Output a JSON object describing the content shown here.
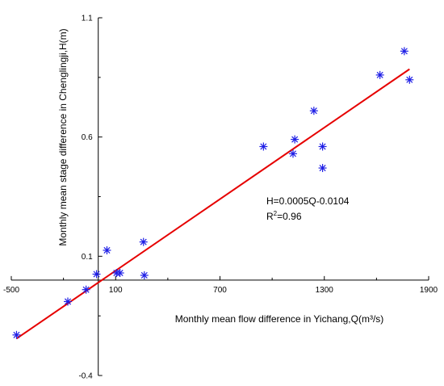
{
  "chart_data": {
    "type": "scatter",
    "title": "",
    "xlabel": "Monthly mean flow difference in Yichang,Q(m³/s)",
    "ylabel": "Monthly mean stage difference in Chenglingji,H(m)",
    "xlim": [
      -500,
      1900
    ],
    "ylim": [
      -0.4,
      1.1
    ],
    "x_tick_labels": [
      "-500",
      "100",
      "700",
      "1300",
      "1900"
    ],
    "x_tick_values": [
      -500,
      100,
      700,
      1300,
      1900
    ],
    "x_minor_ticks": [
      -200,
      400,
      1000,
      1600
    ],
    "y_tick_labels": [
      "-0.4",
      "0.1",
      "0.6",
      "1.1"
    ],
    "y_tick_values": [
      -0.4,
      0.1,
      0.6,
      1.1
    ],
    "y_minor_ticks": [
      -0.15,
      0.35,
      0.85
    ],
    "grid": false,
    "series": [
      {
        "marker": "asterisk",
        "color": "#1f1fe6",
        "x": [
          -470,
          -175,
          -70,
          -10,
          50,
          105,
          125,
          260,
          265,
          950,
          1120,
          1130,
          1240,
          1290,
          1290,
          1620,
          1760,
          1790
        ],
        "y": [
          -0.23,
          -0.09,
          -0.04,
          0.025,
          0.125,
          0.03,
          0.03,
          0.16,
          0.02,
          0.56,
          0.53,
          0.59,
          0.71,
          0.56,
          0.47,
          0.86,
          0.96,
          0.84
        ]
      }
    ],
    "fit_line": {
      "color": "#e60000",
      "x": [
        -470,
        1790
      ],
      "y": [
        -0.2454,
        0.8846
      ]
    },
    "annotations": {
      "equation": "H=0.0005Q-0.0104",
      "r2_prefix": "R",
      "r2_sup": "2",
      "r2_value": "=0.96"
    }
  }
}
